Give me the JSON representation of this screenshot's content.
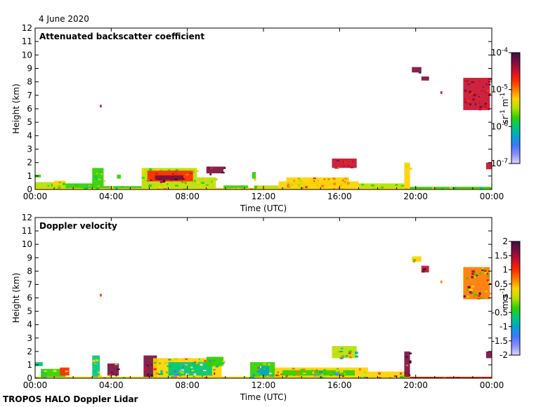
{
  "date_label": "4 June 2020",
  "footer": "TROPOS HALO Doppler Lidar",
  "colors": {
    "colormap": [
      "#3b0f3f",
      "#7a1040",
      "#c8102e",
      "#ff2a00",
      "#ff7a00",
      "#ffd200",
      "#b6e000",
      "#30d000",
      "#00c878",
      "#00a8c8",
      "#3c78ff",
      "#8c8cff",
      "#d8d8ff"
    ]
  },
  "chart_data": [
    {
      "type": "heatmap",
      "title": "Attenuated backscatter coefficient",
      "xlabel": "Time (UTC)",
      "ylabel": "Height (km)",
      "x_ticks": [
        "00:00",
        "04:00",
        "08:00",
        "12:00",
        "16:00",
        "20:00",
        "00:00"
      ],
      "y_ticks": [
        0,
        1,
        2,
        3,
        4,
        5,
        6,
        7,
        8,
        9,
        10,
        11,
        12
      ],
      "ylim": [
        0,
        12
      ],
      "xlim_hours": [
        0,
        24
      ],
      "colorbar": {
        "label": "sr-1 m-1",
        "label_parts": [
          "sr",
          "-1",
          " m",
          "-1"
        ],
        "scale": "log",
        "tick_labels": [
          {
            "base": "10",
            "exp": "-4",
            "value_log": -4
          },
          {
            "base": "10",
            "exp": "-5",
            "value_log": -5
          },
          {
            "base": "10",
            "exp": "-6",
            "value_log": -6
          },
          {
            "base": "10",
            "exp": "-7",
            "value_log": -7
          }
        ],
        "range_log": [
          -7,
          -4
        ]
      },
      "regions": [
        {
          "t0": 0.0,
          "t1": 24.0,
          "h0": 0.0,
          "h1": 0.12,
          "v": 0.6
        },
        {
          "t0": 0.0,
          "t1": 1.6,
          "h0": 0.1,
          "h1": 0.55,
          "v": 0.48
        },
        {
          "t0": 0.0,
          "t1": 0.3,
          "h0": 0.9,
          "h1": 1.1,
          "v": 0.45
        },
        {
          "t0": 1.0,
          "t1": 1.6,
          "h0": 0.3,
          "h1": 0.65,
          "v": 0.55
        },
        {
          "t0": 1.6,
          "t1": 3.1,
          "h0": 0.1,
          "h1": 0.45,
          "v": 0.45
        },
        {
          "t0": 3.0,
          "t1": 3.6,
          "h0": 0.1,
          "h1": 1.6,
          "v": 0.42
        },
        {
          "t0": 3.4,
          "t1": 3.5,
          "h0": 6.1,
          "h1": 6.3,
          "v": 0.85
        },
        {
          "t0": 3.6,
          "t1": 5.6,
          "h0": 0.1,
          "h1": 0.25,
          "v": 0.45
        },
        {
          "t0": 4.3,
          "t1": 4.5,
          "h0": 0.8,
          "h1": 1.1,
          "v": 0.45
        },
        {
          "t0": 5.6,
          "t1": 8.5,
          "h0": 0.1,
          "h1": 1.6,
          "v": 0.5
        },
        {
          "t0": 5.9,
          "t1": 8.3,
          "h0": 0.6,
          "h1": 1.4,
          "v": 0.78
        },
        {
          "t0": 6.3,
          "t1": 7.8,
          "h0": 0.7,
          "h1": 1.05,
          "v": 0.95
        },
        {
          "t0": 8.5,
          "t1": 9.5,
          "h0": 0.1,
          "h1": 0.9,
          "v": 0.5
        },
        {
          "t0": 9.0,
          "t1": 9.9,
          "h0": 1.2,
          "h1": 1.7,
          "v": 0.88
        },
        {
          "t0": 9.9,
          "t1": 11.2,
          "h0": 0.1,
          "h1": 0.3,
          "v": 0.45
        },
        {
          "t0": 11.4,
          "t1": 11.6,
          "h0": 0.8,
          "h1": 1.3,
          "v": 0.45
        },
        {
          "t0": 11.5,
          "t1": 12.8,
          "h0": 0.1,
          "h1": 0.3,
          "v": 0.5
        },
        {
          "t0": 12.8,
          "t1": 17.0,
          "h0": 0.1,
          "h1": 0.6,
          "v": 0.6
        },
        {
          "t0": 13.2,
          "t1": 16.5,
          "h0": 0.3,
          "h1": 0.9,
          "v": 0.62
        },
        {
          "t0": 15.6,
          "t1": 16.9,
          "h0": 1.6,
          "h1": 2.3,
          "v": 0.82
        },
        {
          "t0": 17.0,
          "t1": 19.4,
          "h0": 0.1,
          "h1": 0.45,
          "v": 0.5
        },
        {
          "t0": 19.4,
          "t1": 19.7,
          "h0": 0.1,
          "h1": 2.0,
          "v": 0.55
        },
        {
          "t0": 19.7,
          "t1": 23.9,
          "h0": 0.05,
          "h1": 0.2,
          "v": 0.45
        },
        {
          "t0": 19.8,
          "t1": 20.3,
          "h0": 8.7,
          "h1": 9.1,
          "v": 0.92
        },
        {
          "t0": 20.3,
          "t1": 20.7,
          "h0": 8.1,
          "h1": 8.4,
          "v": 0.88
        },
        {
          "t0": 21.3,
          "t1": 21.4,
          "h0": 7.1,
          "h1": 7.3,
          "v": 0.8
        },
        {
          "t0": 22.5,
          "t1": 23.9,
          "h0": 5.9,
          "h1": 8.3,
          "v": 0.86
        },
        {
          "t0": 23.7,
          "t1": 24.0,
          "h0": 1.5,
          "h1": 2.0,
          "v": 0.8
        }
      ]
    },
    {
      "type": "heatmap",
      "title": "Doppler velocity",
      "xlabel": "Time (UTC)",
      "ylabel": "Height (km)",
      "x_ticks": [
        "00:00",
        "04:00",
        "08:00",
        "12:00",
        "16:00",
        "20:00",
        "00:00"
      ],
      "y_ticks": [
        0,
        1,
        2,
        3,
        4,
        5,
        6,
        7,
        8,
        9,
        10,
        11,
        12
      ],
      "ylim": [
        0,
        12
      ],
      "xlim_hours": [
        0,
        24
      ],
      "colorbar": {
        "label": "m s-1",
        "label_parts": [
          "m s",
          "-1"
        ],
        "scale": "linear",
        "tick_labels": [
          "2",
          "1.5",
          "1",
          "0.5",
          "0",
          "-0.5",
          "-1",
          "-1.5",
          "-2"
        ],
        "range": [
          -2,
          2
        ]
      },
      "regions": [
        {
          "t0": 0.0,
          "t1": 24.0,
          "h0": 0.0,
          "h1": 0.12,
          "v": 0.62
        },
        {
          "t0": 0.0,
          "t1": 0.4,
          "h0": 0.9,
          "h1": 1.2,
          "v": 0.3
        },
        {
          "t0": 0.3,
          "t1": 1.6,
          "h0": 0.1,
          "h1": 0.7,
          "v": 0.45
        },
        {
          "t0": 1.3,
          "t1": 1.8,
          "h0": 0.2,
          "h1": 0.8,
          "v": 0.75
        },
        {
          "t0": 3.0,
          "t1": 3.4,
          "h0": 0.1,
          "h1": 1.7,
          "v": 0.35
        },
        {
          "t0": 3.4,
          "t1": 3.5,
          "h0": 6.1,
          "h1": 6.3,
          "v": 0.75
        },
        {
          "t0": 3.8,
          "t1": 4.4,
          "h0": 0.2,
          "h1": 1.1,
          "v": 0.92
        },
        {
          "t0": 5.7,
          "t1": 6.4,
          "h0": 0.1,
          "h1": 1.7,
          "v": 0.94
        },
        {
          "t0": 6.2,
          "t1": 9.8,
          "h0": 0.1,
          "h1": 1.5,
          "v": 0.55
        },
        {
          "t0": 7.0,
          "t1": 9.3,
          "h0": 0.2,
          "h1": 1.2,
          "v": 0.3
        },
        {
          "t0": 9.0,
          "t1": 9.9,
          "h0": 0.9,
          "h1": 1.6,
          "v": 0.45
        },
        {
          "t0": 11.3,
          "t1": 12.6,
          "h0": 0.1,
          "h1": 1.2,
          "v": 0.45
        },
        {
          "t0": 11.8,
          "t1": 12.3,
          "h0": 0.2,
          "h1": 0.9,
          "v": 0.28
        },
        {
          "t0": 12.6,
          "t1": 17.5,
          "h0": 0.1,
          "h1": 0.8,
          "v": 0.58
        },
        {
          "t0": 13.0,
          "t1": 16.8,
          "h0": 0.2,
          "h1": 0.6,
          "v": 0.4
        },
        {
          "t0": 15.6,
          "t1": 16.9,
          "h0": 1.5,
          "h1": 2.4,
          "v": 0.48
        },
        {
          "t0": 17.5,
          "t1": 19.7,
          "h0": 0.1,
          "h1": 0.5,
          "v": 0.6
        },
        {
          "t0": 19.4,
          "t1": 19.7,
          "h0": 0.1,
          "h1": 2.0,
          "v": 0.94
        },
        {
          "t0": 19.7,
          "t1": 24.0,
          "h0": 0.0,
          "h1": 0.1,
          "v": 0.8
        },
        {
          "t0": 19.8,
          "t1": 20.3,
          "h0": 8.7,
          "h1": 9.1,
          "v": 0.6
        },
        {
          "t0": 20.3,
          "t1": 20.7,
          "h0": 7.9,
          "h1": 8.4,
          "v": 0.8
        },
        {
          "t0": 21.3,
          "t1": 21.4,
          "h0": 7.1,
          "h1": 7.3,
          "v": 0.7
        },
        {
          "t0": 22.5,
          "t1": 23.9,
          "h0": 5.9,
          "h1": 8.3,
          "v": 0.68
        },
        {
          "t0": 23.7,
          "t1": 24.0,
          "h0": 1.5,
          "h1": 2.0,
          "v": 0.94
        }
      ]
    }
  ]
}
